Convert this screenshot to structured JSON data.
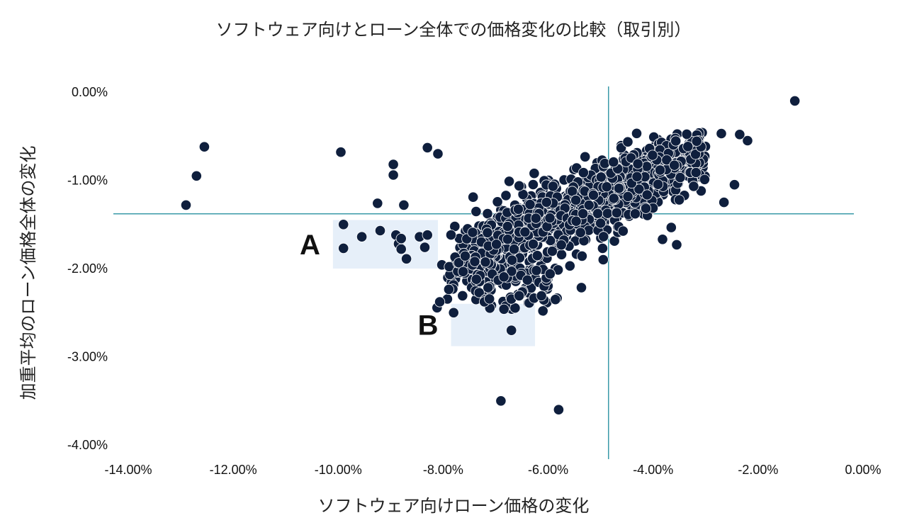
{
  "chart_data": {
    "type": "scatter",
    "title": "ソフトウェア向けとローン全体での価格変化の比較（取引別）",
    "xlabel": "ソフトウェア向けローン価格の変化",
    "ylabel": "加重平均のローン価格全体の変化",
    "xlim": [
      -14.0,
      0.0
    ],
    "ylim": [
      -4.0,
      0.0
    ],
    "x_ticks": [
      "-14.00%",
      "-12.00%",
      "-10.00%",
      "-8.00%",
      "-6.00%",
      "-4.00%",
      "-2.00%",
      "0.00%"
    ],
    "x_tick_values": [
      -14,
      -12,
      -10,
      -8,
      -6,
      -4,
      -2,
      0
    ],
    "y_ticks": [
      "0.00%",
      "-1.00%",
      "-2.00%",
      "-3.00%",
      "-4.00%"
    ],
    "y_tick_values": [
      0,
      -1,
      -2,
      -3,
      -4
    ],
    "reference_lines": {
      "x": -4.85,
      "y": -1.38
    },
    "regions": [
      {
        "label": "A",
        "x": [
          -10.1,
          -8.1
        ],
        "y": [
          -2.0,
          -1.45
        ]
      },
      {
        "label": "B",
        "x": [
          -7.85,
          -6.25
        ],
        "y": [
          -2.88,
          -2.4
        ]
      }
    ],
    "outliers": [
      {
        "x": -1.3,
        "y": -0.1
      },
      {
        "x": -12.55,
        "y": -0.62
      },
      {
        "x": -12.7,
        "y": -0.95
      },
      {
        "x": -12.9,
        "y": -1.28
      },
      {
        "x": -9.95,
        "y": -0.68
      },
      {
        "x": -9.9,
        "y": -1.5
      },
      {
        "x": -9.9,
        "y": -1.77
      },
      {
        "x": -9.55,
        "y": -1.64
      },
      {
        "x": -9.25,
        "y": -1.26
      },
      {
        "x": -9.2,
        "y": -1.57
      },
      {
        "x": -8.95,
        "y": -0.82
      },
      {
        "x": -8.9,
        "y": -1.62
      },
      {
        "x": -8.85,
        "y": -1.72
      },
      {
        "x": -8.8,
        "y": -1.66
      },
      {
        "x": -8.8,
        "y": -1.78
      },
      {
        "x": -8.7,
        "y": -1.89
      },
      {
        "x": -8.75,
        "y": -1.28
      },
      {
        "x": -8.95,
        "y": -0.94
      },
      {
        "x": -8.45,
        "y": -1.64
      },
      {
        "x": -8.35,
        "y": -1.76
      },
      {
        "x": -8.3,
        "y": -1.62
      },
      {
        "x": -8.3,
        "y": -0.63
      },
      {
        "x": -8.1,
        "y": -0.7
      },
      {
        "x": -7.8,
        "y": -2.5
      },
      {
        "x": -6.7,
        "y": -2.7
      },
      {
        "x": -6.9,
        "y": -3.5
      },
      {
        "x": -5.8,
        "y": -3.6
      },
      {
        "x": -3.55,
        "y": -1.73
      },
      {
        "x": -2.45,
        "y": -1.05
      },
      {
        "x": -2.65,
        "y": -1.25
      },
      {
        "x": -2.2,
        "y": -0.55
      },
      {
        "x": -2.35,
        "y": -0.48
      },
      {
        "x": -2.7,
        "y": -0.47
      },
      {
        "x": -6.1,
        "y": -2.48
      },
      {
        "x": -4.95,
        "y": -1.9
      }
    ],
    "main_cluster": {
      "points": 1100,
      "x": [
        -8.2,
        -3.0
      ],
      "y": [
        -2.5,
        -0.45
      ],
      "trend": "positive"
    },
    "marker_color": "#0f1f3d",
    "marker_edge": "#ffffff",
    "line_color": "#3a9aa8",
    "region_fill": "#e6eff9"
  }
}
